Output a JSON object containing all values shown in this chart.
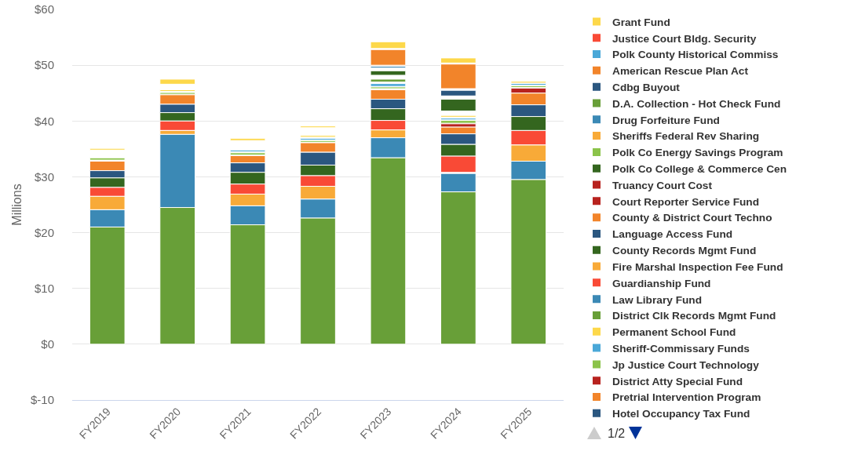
{
  "chart_data": {
    "type": "bar",
    "categories": [
      "FY2019",
      "FY2020",
      "FY2021",
      "FY2022",
      "FY2023",
      "FY2024",
      "FY2025"
    ],
    "ylabel": "Millions",
    "ylim": [
      -10,
      60
    ],
    "yticks": [
      {
        "value": -10,
        "label": "$-10"
      },
      {
        "value": 0,
        "label": "$0"
      },
      {
        "value": 10,
        "label": "$10"
      },
      {
        "value": 20,
        "label": "$20"
      },
      {
        "value": 30,
        "label": "$30"
      },
      {
        "value": 40,
        "label": "$40"
      },
      {
        "value": 50,
        "label": "$50"
      },
      {
        "value": 60,
        "label": "$60"
      }
    ],
    "grid": "y",
    "legend": "right",
    "annotations": [
      "1/2"
    ],
    "series": [
      {
        "name": "Grant Fund",
        "color": "#fdd84a",
        "values": [
          0.3,
          0.9,
          0.4,
          0.3,
          1.2,
          0.9,
          null
        ],
        "base": [
          34.8,
          46.6,
          36.5,
          38.8,
          53.0,
          50.4,
          null
        ]
      },
      {
        "name": "Justice Court Bldg. Security",
        "color": "#f94a36",
        "values": [
          null,
          null,
          null,
          null,
          null,
          null,
          null
        ]
      },
      {
        "name": "Polk County Historical Commiss",
        "color": "#4aa8d8",
        "values": [
          null,
          null,
          null,
          null,
          null,
          null,
          null
        ]
      },
      {
        "name": "American Rescue Plan Act",
        "color": "#f2842a",
        "values": [
          null,
          null,
          null,
          null,
          2.8,
          4.4,
          null
        ],
        "base": [
          null,
          null,
          null,
          null,
          50.0,
          45.8,
          null
        ]
      },
      {
        "name": "Cdbg Buyout",
        "color": "#2b5780",
        "values": [
          null,
          null,
          null,
          null,
          null,
          1.0,
          null
        ],
        "base": [
          null,
          null,
          null,
          null,
          null,
          44.5,
          null
        ]
      },
      {
        "name": "D.A. Collection - Hot Check Fund",
        "color": "#689f38",
        "values": [
          null,
          null,
          null,
          null,
          null,
          null,
          null
        ]
      },
      {
        "name": "Drug Forfeiture Fund",
        "color": "#3b89b5",
        "values": [
          null,
          null,
          null,
          null,
          0.3,
          null,
          null
        ],
        "base": [
          null,
          null,
          null,
          null,
          49.5,
          null,
          null
        ]
      },
      {
        "name": "Sheriffs Federal Rev Sharing",
        "color": "#f8aa38",
        "values": [
          null,
          null,
          null,
          null,
          null,
          null,
          null
        ]
      },
      {
        "name": "Polk Co Energy Savings Program",
        "color": "#8bc34a",
        "values": [
          null,
          null,
          null,
          null,
          null,
          null,
          null
        ]
      },
      {
        "name": "Polk Co College & Commerce Cen",
        "color": "#34661f",
        "values": [
          null,
          null,
          null,
          null,
          0.8,
          2.1,
          null
        ],
        "base": [
          null,
          null,
          null,
          null,
          48.2,
          41.8,
          null
        ]
      },
      {
        "name": "Truancy Court Cost",
        "color": "#b8221e",
        "values": [
          null,
          null,
          null,
          null,
          null,
          null,
          null
        ]
      },
      {
        "name": "Court Reporter Service Fund",
        "color": "#b8221e",
        "values": [
          null,
          null,
          null,
          null,
          null,
          null,
          null
        ]
      },
      {
        "name": "County & District Court Techno",
        "color": "#f2842a",
        "values": [
          null,
          null,
          null,
          null,
          null,
          null,
          null
        ]
      },
      {
        "name": "Language Access Fund",
        "color": "#2b5780",
        "values": [
          null,
          null,
          null,
          null,
          null,
          null,
          null
        ]
      },
      {
        "name": "County Records Mgmt Fund",
        "color": "#34661f",
        "values": [
          null,
          null,
          null,
          null,
          null,
          null,
          null
        ]
      },
      {
        "name": "Fire Marshal Inspection Fee Fund",
        "color": "#f8aa38",
        "values": [
          null,
          null,
          null,
          null,
          null,
          null,
          null
        ]
      },
      {
        "name": "Guardianship Fund",
        "color": "#f94a36",
        "values": [
          null,
          null,
          null,
          null,
          null,
          null,
          null
        ]
      },
      {
        "name": "Law Library Fund",
        "color": "#3b89b5",
        "values": [
          null,
          null,
          null,
          null,
          null,
          null,
          null
        ]
      },
      {
        "name": "District Clk Records Mgmt Fund",
        "color": "#689f38",
        "values": [
          null,
          null,
          null,
          null,
          0.5,
          null,
          null
        ],
        "base": [
          null,
          null,
          null,
          null,
          47.0,
          null,
          null
        ]
      },
      {
        "name": "Permanent School Fund",
        "color": "#fdd84a",
        "values": [
          null,
          0.3,
          null,
          0.3,
          null,
          0.3,
          0.3
        ],
        "base": [
          null,
          45.3,
          null,
          37.1,
          null,
          40.7,
          46.8
        ]
      },
      {
        "name": "Sheriff-Commissary Funds",
        "color": "#4aa8d8",
        "values": [
          null,
          null,
          0.3,
          0.3,
          0.5,
          0.3,
          0.3
        ],
        "base": [
          null,
          null,
          34.5,
          36.6,
          46.2,
          40.2,
          46.4
        ]
      },
      {
        "name": "Jp Justice Court Technology",
        "color": "#8bc34a",
        "values": [
          0.4,
          0.3,
          0.4,
          0.3,
          0.3,
          0.5,
          0.3
        ],
        "base": [
          33.0,
          44.8,
          33.9,
          36.2,
          45.8,
          39.6,
          46.0
        ]
      },
      {
        "name": "District Atty Special Fund",
        "color": "#b8221e",
        "values": [
          null,
          null,
          null,
          null,
          null,
          0.6,
          0.9
        ],
        "base": [
          null,
          null,
          null,
          null,
          null,
          38.9,
          45.0
        ]
      },
      {
        "name": "Pretrial Intervention Program",
        "color": "#f2842a",
        "values": [
          1.7,
          1.7,
          1.3,
          1.7,
          1.7,
          1.2,
          2.1
        ],
        "base": [
          31.1,
          43.0,
          32.5,
          34.4,
          43.9,
          37.7,
          42.9
        ]
      },
      {
        "name": "Hotel Occupancy Tax Fund",
        "color": "#2b5780",
        "values": [
          1.3,
          1.5,
          1.7,
          2.3,
          1.7,
          1.9,
          2.1
        ],
        "base": [
          29.8,
          41.5,
          30.8,
          32.1,
          42.2,
          35.8,
          40.8
        ]
      },
      {
        "color": "#34661f",
        "values": [
          1.7,
          1.5,
          2.1,
          1.9,
          2.1,
          2.1,
          2.5
        ],
        "base": [
          28.1,
          40.0,
          28.7,
          30.2,
          40.1,
          33.7,
          38.3
        ]
      },
      {
        "color": "#f94a36",
        "values": [
          1.6,
          1.7,
          1.8,
          1.9,
          1.7,
          2.9,
          2.6
        ],
        "base": [
          26.5,
          38.3,
          26.9,
          28.3,
          38.4,
          30.8,
          35.7
        ]
      },
      {
        "color": "#f8aa38",
        "values": [
          2.4,
          0.7,
          2.1,
          2.3,
          1.4,
          null,
          2.9
        ],
        "base": [
          24.1,
          37.6,
          24.8,
          26.0,
          37.0,
          null,
          32.8
        ]
      },
      {
        "color": "#3b89b5",
        "values": [
          3.1,
          13.1,
          3.4,
          3.4,
          3.6,
          3.3,
          3.3
        ],
        "base": [
          21.0,
          24.5,
          21.4,
          22.6,
          33.4,
          27.3,
          29.5
        ]
      },
      {
        "color": "#689f38",
        "values": [
          21.0,
          24.5,
          21.4,
          22.6,
          33.4,
          27.3,
          29.5
        ],
        "base": [
          0,
          0,
          0,
          0,
          0,
          0,
          0
        ]
      }
    ]
  }
}
